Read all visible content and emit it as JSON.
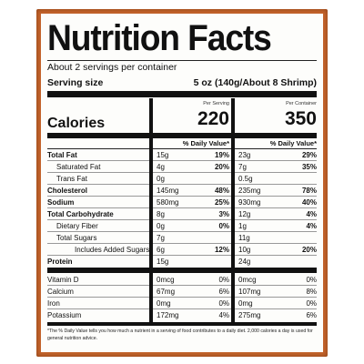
{
  "title": "Nutrition Facts",
  "servings": "About 2 servings per container",
  "serving_size": {
    "label": "Serving size",
    "value": "5 oz (140g/About 8 Shrimp)"
  },
  "calories_label": "Calories",
  "columns": [
    {
      "label": "Per Serving",
      "calories": "220",
      "dv_header": "% Daily Value*"
    },
    {
      "label": "Per Container",
      "calories": "350",
      "dv_header": "% Daily Value*"
    }
  ],
  "rows": [
    {
      "name": "Total Fat",
      "serving": [
        "15g",
        "19%"
      ],
      "container": [
        "23g",
        "29%"
      ]
    },
    {
      "name": "Saturated Fat",
      "serving": [
        "4g",
        "20%"
      ],
      "container": [
        "7g",
        "35%"
      ]
    },
    {
      "name": "Trans Fat",
      "serving": [
        "0g",
        null
      ],
      "container": [
        "0.5g",
        null
      ]
    },
    {
      "name": "Cholesterol",
      "serving": [
        "145mg",
        "48%"
      ],
      "container": [
        "235mg",
        "78%"
      ]
    },
    {
      "name": "Sodium",
      "serving": [
        "580mg",
        "25%"
      ],
      "container": [
        "930mg",
        "40%"
      ]
    },
    {
      "name": "Total Carbohydrate",
      "serving": [
        "8g",
        "3%"
      ],
      "container": [
        "12g",
        "4%"
      ]
    },
    {
      "name": "Dietary Fiber",
      "serving": [
        "0g",
        "0%"
      ],
      "container": [
        "1g",
        "4%"
      ]
    },
    {
      "name": "Total Sugars",
      "serving": [
        "7g",
        null
      ],
      "container": [
        "11g",
        null
      ]
    },
    {
      "name": "Includes Added Sugars",
      "serving": [
        "6g",
        "12%"
      ],
      "container": [
        "10g",
        "20%"
      ]
    },
    {
      "name": "Protein",
      "serving": [
        "15g",
        null
      ],
      "container": [
        "24g",
        null
      ]
    },
    {
      "name": "Vitamin D",
      "serving": [
        "0mcg",
        "0%"
      ],
      "container": [
        "0mcg",
        "0%"
      ]
    },
    {
      "name": "Calcium",
      "serving": [
        "67mg",
        "6%"
      ],
      "container": [
        "107mg",
        "8%"
      ]
    },
    {
      "name": "Iron",
      "serving": [
        "0mg",
        "0%"
      ],
      "container": [
        "0mg",
        "0%"
      ]
    },
    {
      "name": "Potassium",
      "serving": [
        "172mg",
        "4%"
      ],
      "container": [
        "275mg",
        "6%"
      ]
    }
  ],
  "footnote": "*The % Daily Value tells you how much a nutrient in a serving of food contributes to a daily diet. 2,000 calories a day is used for general nutrition advice."
}
